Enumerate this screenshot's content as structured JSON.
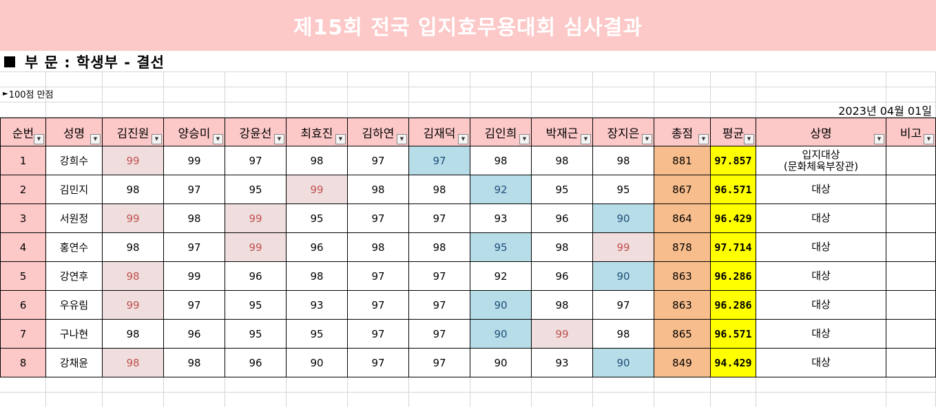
{
  "title": "제15회 전국 입지효무용대회 심사결과",
  "division_label": "부 문 : 학생부 - 결선",
  "perfect_score_note": "100점 만점",
  "date": "2023년 04월 01일",
  "headers": [
    "순번",
    "성명",
    "김진원",
    "양승미",
    "강윤선",
    "최효진",
    "김하연",
    "김재덕",
    "김인희",
    "박재근",
    "장지은",
    "총점",
    "평균",
    "상명",
    "비고"
  ],
  "rows": [
    {
      "seq": "1",
      "name": "강희수",
      "scores": [
        "99",
        "99",
        "97",
        "98",
        "97",
        "97",
        "98",
        "98",
        "98"
      ],
      "score_styles": [
        "hi",
        "",
        "",
        "",
        "",
        "lo",
        "",
        "",
        ""
      ],
      "total": "881",
      "average": "97.857",
      "award": [
        "입지대상",
        "(문화체육부장관)"
      ],
      "note": ""
    },
    {
      "seq": "2",
      "name": "김민지",
      "scores": [
        "98",
        "97",
        "95",
        "99",
        "98",
        "98",
        "92",
        "95",
        "95"
      ],
      "score_styles": [
        "",
        "",
        "",
        "hi",
        "",
        "",
        "lo",
        "",
        ""
      ],
      "total": "867",
      "average": "96.571",
      "award": [
        "대상"
      ],
      "note": ""
    },
    {
      "seq": "3",
      "name": "서원정",
      "scores": [
        "99",
        "98",
        "99",
        "95",
        "97",
        "97",
        "93",
        "96",
        "90"
      ],
      "score_styles": [
        "hi",
        "",
        "hi",
        "",
        "",
        "",
        "",
        "",
        "lo"
      ],
      "total": "864",
      "average": "96.429",
      "award": [
        "대상"
      ],
      "note": ""
    },
    {
      "seq": "4",
      "name": "홍연수",
      "scores": [
        "98",
        "97",
        "99",
        "96",
        "98",
        "98",
        "95",
        "98",
        "99"
      ],
      "score_styles": [
        "",
        "",
        "hi",
        "",
        "",
        "",
        "lo",
        "",
        "hi"
      ],
      "total": "878",
      "average": "97.714",
      "award": [
        "대상"
      ],
      "note": ""
    },
    {
      "seq": "5",
      "name": "강연후",
      "scores": [
        "98",
        "99",
        "96",
        "98",
        "97",
        "97",
        "92",
        "96",
        "90"
      ],
      "score_styles": [
        "hi",
        "",
        "",
        "",
        "",
        "",
        "",
        "",
        "lo"
      ],
      "total": "863",
      "average": "96.286",
      "award": [
        "대상"
      ],
      "note": ""
    },
    {
      "seq": "6",
      "name": "우유림",
      "scores": [
        "99",
        "97",
        "95",
        "93",
        "97",
        "97",
        "90",
        "98",
        "97"
      ],
      "score_styles": [
        "hi",
        "",
        "",
        "",
        "",
        "",
        "lo",
        "",
        ""
      ],
      "total": "863",
      "average": "96.286",
      "award": [
        "대상"
      ],
      "note": ""
    },
    {
      "seq": "7",
      "name": "구나현",
      "scores": [
        "98",
        "96",
        "95",
        "95",
        "97",
        "97",
        "90",
        "99",
        "98"
      ],
      "score_styles": [
        "",
        "",
        "",
        "",
        "",
        "",
        "lo",
        "hi",
        ""
      ],
      "total": "865",
      "average": "96.571",
      "award": [
        "대상"
      ],
      "note": ""
    },
    {
      "seq": "8",
      "name": "강채윤",
      "scores": [
        "98",
        "98",
        "96",
        "90",
        "97",
        "97",
        "90",
        "93",
        "90"
      ],
      "score_styles": [
        "hi",
        "",
        "",
        "",
        "",
        "",
        "",
        "",
        "lo"
      ],
      "total": "849",
      "average": "94.429",
      "award": [
        "대상"
      ],
      "note": ""
    }
  ],
  "colors": {
    "header_pink": "#fcc8c8",
    "high_score_bg": "#f0dede",
    "low_score_bg": "#b7dde8",
    "total_bg": "#f8bd8c",
    "average_bg": "#ffff00"
  }
}
